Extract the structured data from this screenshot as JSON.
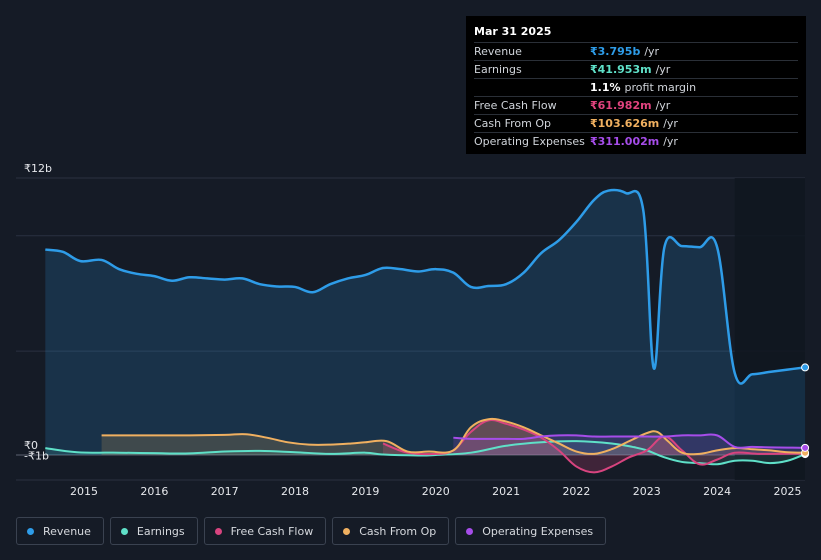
{
  "tooltip": {
    "date": "Mar 31 2025",
    "rows": [
      {
        "label": "Revenue",
        "value": "₹3.795b",
        "unit": "/yr",
        "color": "#2e9ce8"
      },
      {
        "label": "Earnings",
        "value": "₹41.953m",
        "unit": "/yr",
        "color": "#5fe0c8"
      },
      {
        "label": "",
        "value": "1.1%",
        "unit": "profit margin",
        "color": "#ffffff"
      },
      {
        "label": "Free Cash Flow",
        "value": "₹61.982m",
        "unit": "/yr",
        "color": "#e0437e"
      },
      {
        "label": "Cash From Op",
        "value": "₹103.626m",
        "unit": "/yr",
        "color": "#f0b060"
      },
      {
        "label": "Operating Expenses",
        "value": "₹311.002m",
        "unit": "/yr",
        "color": "#a64dea"
      }
    ]
  },
  "legend": [
    {
      "label": "Revenue",
      "color": "#2e9ce8"
    },
    {
      "label": "Earnings",
      "color": "#5fe0c8"
    },
    {
      "label": "Free Cash Flow",
      "color": "#d8447f"
    },
    {
      "label": "Cash From Op",
      "color": "#f0b060"
    },
    {
      "label": "Operating Expenses",
      "color": "#a64dea"
    }
  ],
  "chart_data": {
    "type": "area",
    "y_tick_labels": [
      "₹12b",
      "₹0",
      "-₹1b"
    ],
    "ylim": [
      -1,
      12
    ],
    "x_tick_labels": [
      "2015",
      "2016",
      "2017",
      "2018",
      "2019",
      "2020",
      "2021",
      "2022",
      "2023",
      "2024",
      "2025"
    ],
    "xlim": [
      2014.45,
      2025.27
    ],
    "forecast_start": 2024.25,
    "grid": true,
    "legend_position": "bottom",
    "series": [
      {
        "name": "Revenue",
        "color": "#2e9ce8",
        "x": [
          2014.45,
          2014.7,
          2014.95,
          2015.25,
          2015.5,
          2015.75,
          2016.0,
          2016.25,
          2016.5,
          2016.75,
          2017.0,
          2017.25,
          2017.5,
          2017.75,
          2018.0,
          2018.25,
          2018.5,
          2018.75,
          2019.0,
          2019.25,
          2019.5,
          2019.75,
          2020.0,
          2020.25,
          2020.5,
          2020.75,
          2021.0,
          2021.25,
          2021.5,
          2021.75,
          2022.0,
          2022.25,
          2022.45,
          2022.7,
          2022.95,
          2023.1,
          2023.25,
          2023.5,
          2023.75,
          2024.0,
          2024.25,
          2024.5,
          2024.75,
          2025.0,
          2025.25
        ],
        "values": [
          8.9,
          8.8,
          8.4,
          8.45,
          8.05,
          7.85,
          7.75,
          7.55,
          7.7,
          7.65,
          7.6,
          7.65,
          7.4,
          7.3,
          7.28,
          7.05,
          7.4,
          7.65,
          7.8,
          8.1,
          8.05,
          7.95,
          8.05,
          7.9,
          7.28,
          7.32,
          7.4,
          7.9,
          8.75,
          9.3,
          10.1,
          11.05,
          11.45,
          11.35,
          10.6,
          3.75,
          9.0,
          9.05,
          9.0,
          9.0,
          3.55,
          3.5,
          3.6,
          3.7,
          3.795
        ]
      },
      {
        "name": "Earnings",
        "color": "#5fe0c8",
        "x": [
          2014.45,
          2014.9,
          2015.5,
          2016.0,
          2016.5,
          2017.0,
          2017.5,
          2018.0,
          2018.5,
          2019.0,
          2019.25,
          2019.75,
          2020.0,
          2020.5,
          2021.0,
          2021.5,
          2022.0,
          2022.5,
          2022.8,
          2023.0,
          2023.25,
          2023.5,
          2023.75,
          2024.0,
          2024.25,
          2024.5,
          2024.75,
          2025.0,
          2025.25
        ],
        "values": [
          0.3,
          0.12,
          0.1,
          0.08,
          0.07,
          0.15,
          0.18,
          0.12,
          0.05,
          0.1,
          0.02,
          -0.02,
          0.0,
          0.1,
          0.4,
          0.55,
          0.6,
          0.5,
          0.35,
          0.2,
          -0.1,
          -0.3,
          -0.35,
          -0.4,
          -0.25,
          -0.25,
          -0.35,
          -0.25,
          0.04
        ]
      },
      {
        "name": "Free Cash Flow",
        "color": "#d8447f",
        "x": [
          2019.25,
          2019.6,
          2020.0,
          2020.25,
          2020.5,
          2020.75,
          2021.0,
          2021.25,
          2021.5,
          2021.75,
          2022.0,
          2022.25,
          2022.5,
          2022.75,
          2023.0,
          2023.25,
          2023.5,
          2023.75,
          2024.0,
          2024.25,
          2024.6,
          2025.0,
          2025.25
        ],
        "values": [
          0.5,
          0.1,
          0.05,
          0.2,
          1.0,
          1.5,
          1.35,
          1.1,
          0.75,
          0.2,
          -0.5,
          -0.75,
          -0.5,
          -0.1,
          0.2,
          0.8,
          0.2,
          -0.4,
          -0.2,
          0.1,
          0.05,
          0.06,
          0.06
        ]
      },
      {
        "name": "Cash From Op",
        "color": "#f0b060",
        "x": [
          2015.25,
          2015.6,
          2016.0,
          2016.5,
          2017.0,
          2017.3,
          2017.6,
          2017.9,
          2018.2,
          2018.5,
          2018.8,
          2019.0,
          2019.3,
          2019.6,
          2019.9,
          2020.25,
          2020.5,
          2020.75,
          2021.0,
          2021.25,
          2021.5,
          2021.75,
          2022.0,
          2022.25,
          2022.5,
          2022.75,
          2023.0,
          2023.15,
          2023.3,
          2023.5,
          2023.75,
          2024.0,
          2024.25,
          2024.5,
          2024.75,
          2025.0,
          2025.25
        ],
        "values": [
          0.85,
          0.85,
          0.85,
          0.85,
          0.87,
          0.9,
          0.75,
          0.55,
          0.45,
          0.45,
          0.5,
          0.55,
          0.6,
          0.15,
          0.15,
          0.2,
          1.2,
          1.55,
          1.45,
          1.2,
          0.85,
          0.5,
          0.15,
          0.05,
          0.25,
          0.6,
          0.95,
          1.0,
          0.6,
          0.1,
          0.05,
          0.2,
          0.3,
          0.25,
          0.2,
          0.12,
          0.1
        ]
      },
      {
        "name": "Operating Expenses",
        "color": "#a64dea",
        "x": [
          2020.25,
          2020.5,
          2020.75,
          2021.0,
          2021.25,
          2021.5,
          2021.75,
          2022.0,
          2022.25,
          2022.5,
          2022.75,
          2023.0,
          2023.25,
          2023.5,
          2023.75,
          2024.0,
          2024.25,
          2024.5,
          2024.75,
          2025.0,
          2025.25
        ],
        "values": [
          0.75,
          0.7,
          0.7,
          0.7,
          0.7,
          0.8,
          0.85,
          0.85,
          0.8,
          0.8,
          0.8,
          0.8,
          0.8,
          0.85,
          0.85,
          0.85,
          0.35,
          0.35,
          0.33,
          0.32,
          0.31
        ]
      }
    ]
  }
}
